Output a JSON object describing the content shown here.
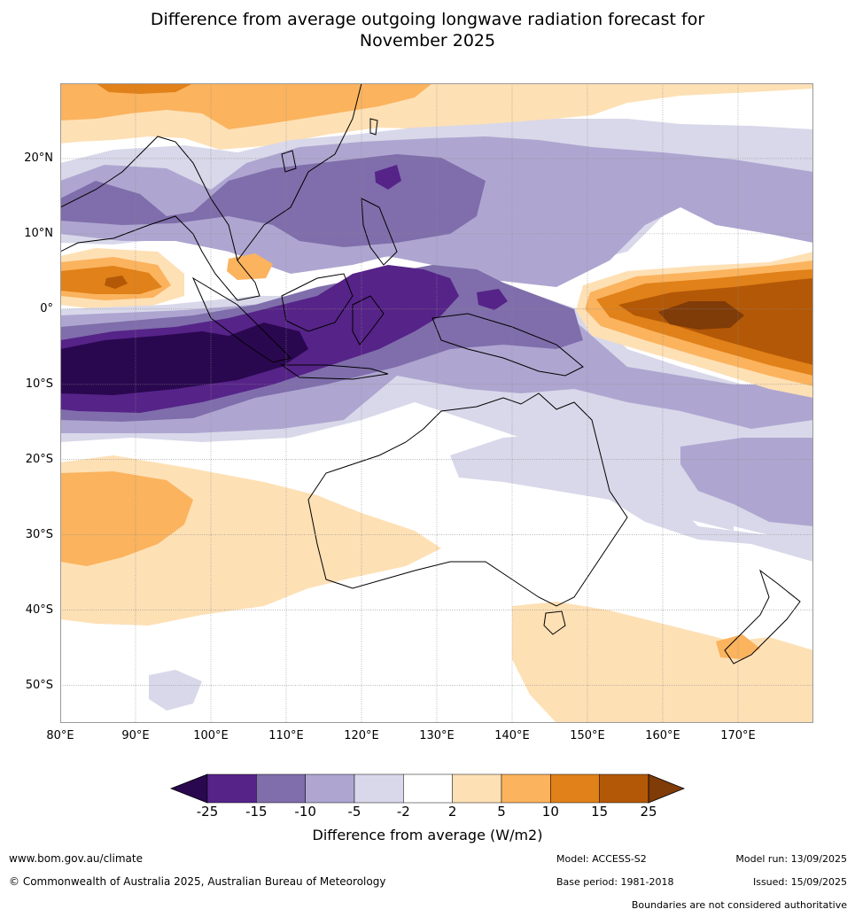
{
  "title_line1": "Difference from average outgoing longwave radiation forecast for",
  "title_line2": "November 2025",
  "map": {
    "lon_range": [
      80,
      180
    ],
    "lat_range": [
      -55,
      30
    ],
    "lat_ticks": [
      {
        "lat": 20,
        "label": "20°N"
      },
      {
        "lat": 10,
        "label": "10°N"
      },
      {
        "lat": 0,
        "label": "0°"
      },
      {
        "lat": -10,
        "label": "10°S"
      },
      {
        "lat": -20,
        "label": "20°S"
      },
      {
        "lat": -30,
        "label": "30°S"
      },
      {
        "lat": -40,
        "label": "40°S"
      },
      {
        "lat": -50,
        "label": "50°S"
      }
    ],
    "lon_ticks": [
      {
        "lon": 80,
        "label": "80°E"
      },
      {
        "lon": 90,
        "label": "90°E"
      },
      {
        "lon": 100,
        "label": "100°E"
      },
      {
        "lon": 110,
        "label": "110°E"
      },
      {
        "lon": 120,
        "label": "120°E"
      },
      {
        "lon": 130,
        "label": "130°E"
      },
      {
        "lon": 140,
        "label": "140°E"
      },
      {
        "lon": 150,
        "label": "150°E"
      },
      {
        "lon": 160,
        "label": "160°E"
      },
      {
        "lon": 170,
        "label": "170°E"
      }
    ]
  },
  "legend": {
    "label": "Difference from average (W/m2)",
    "ticks": [
      "-25",
      "-15",
      "-10",
      "-5",
      "-2",
      "2",
      "5",
      "10",
      "15",
      "25"
    ],
    "colors": [
      "#2a0850",
      "#562388",
      "#7f6eab",
      "#aea6d0",
      "#d8d8ea",
      "#ffffff",
      "#fee0b5",
      "#fbb35e",
      "#e08119",
      "#b35806",
      "#7f3b08"
    ]
  },
  "footer": {
    "website": "www.bom.gov.au/climate",
    "copyright": "© Commonwealth of Australia 2025, Australian Bureau of Meteorology",
    "model": "Model: ACCESS-S2",
    "model_run": "Model run: 13/09/2025",
    "base_period": "Base period: 1981-2018",
    "issued": "Issued: 15/09/2025",
    "disclaimer": "Boundaries are not considered authoritative"
  }
}
